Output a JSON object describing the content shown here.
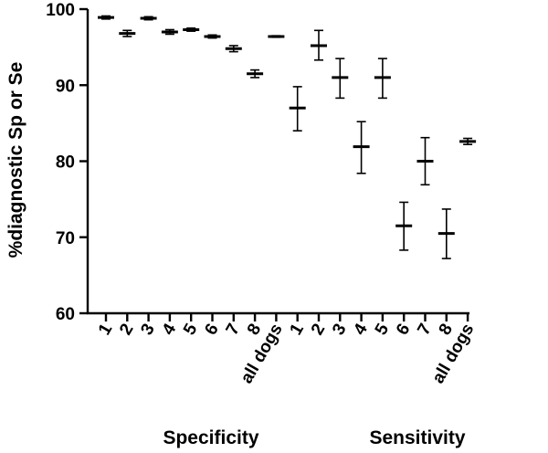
{
  "chart_data": {
    "type": "scatter",
    "ylabel": "%diagnostic Sp or Se",
    "ylim": [
      60,
      100
    ],
    "yticks": [
      60,
      70,
      80,
      90,
      100
    ],
    "groups": [
      {
        "name": "Specificity",
        "categories": [
          "1",
          "2",
          "3",
          "4",
          "5",
          "6",
          "7",
          "8",
          "all dogs"
        ],
        "mean": [
          98.9,
          96.8,
          98.8,
          97.0,
          97.3,
          96.4,
          94.8,
          91.5,
          96.4
        ],
        "lower": [
          98.7,
          96.4,
          98.6,
          96.7,
          97.1,
          96.2,
          94.4,
          91.0,
          96.3
        ],
        "upper": [
          99.1,
          97.2,
          99.0,
          97.3,
          97.5,
          96.6,
          95.2,
          92.0,
          96.5
        ]
      },
      {
        "name": "Sensitivity",
        "categories": [
          "1",
          "2",
          "3",
          "4",
          "5",
          "6",
          "7",
          "8",
          "all dogs"
        ],
        "mean": [
          87.0,
          95.2,
          91.0,
          81.9,
          91.0,
          71.5,
          80.0,
          70.5,
          82.6
        ],
        "lower": [
          84.0,
          93.3,
          88.3,
          78.4,
          88.3,
          68.3,
          76.9,
          67.2,
          82.2
        ],
        "upper": [
          89.8,
          97.2,
          93.5,
          85.2,
          93.5,
          74.6,
          83.1,
          73.7,
          83.0
        ]
      }
    ]
  }
}
